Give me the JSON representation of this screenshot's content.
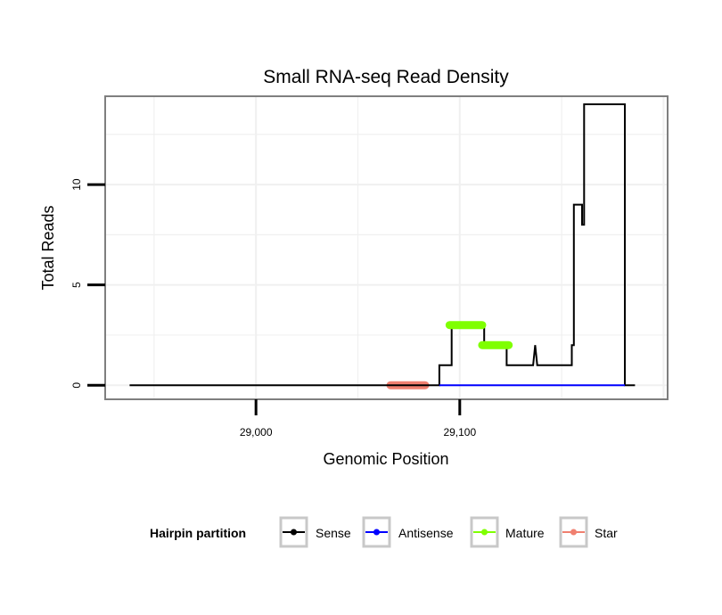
{
  "chart_data": {
    "type": "line",
    "title": "Small RNA-seq Read Density",
    "xlabel": "Genomic Position",
    "ylabel": "Total Reads",
    "xlim": [
      28926,
      29202
    ],
    "ylim": [
      -0.7,
      14.4
    ],
    "x_ticks": [
      29000,
      29100
    ],
    "x_tick_labels": [
      "29,000",
      "29,100"
    ],
    "y_ticks": [
      0,
      5,
      10
    ],
    "y_tick_labels": [
      "0",
      "5",
      "10"
    ],
    "grid": true,
    "legend": {
      "title": "Hairpin partition",
      "position": "bottom",
      "entries": [
        "Sense",
        "Antisense",
        "Mature",
        "Star"
      ]
    },
    "series": [
      {
        "name": "Sense",
        "color": "#000000",
        "x": [
          28938,
          29090,
          29090,
          29093,
          29093,
          29096,
          29096,
          29112,
          29112,
          29113,
          29113,
          29123,
          29123,
          29136,
          29136,
          29137,
          29137,
          29138,
          29138,
          29155,
          29155,
          29156,
          29156,
          29160,
          29160,
          29161,
          29161,
          29162,
          29162,
          29181,
          29181,
          29186
        ],
        "y": [
          0,
          0,
          1,
          1,
          1,
          1,
          3,
          3,
          2,
          2,
          2,
          2,
          1,
          1,
          1,
          2,
          2,
          1,
          1,
          1,
          2,
          2,
          9,
          9,
          8,
          8,
          14,
          14,
          14,
          14,
          0,
          0
        ]
      },
      {
        "name": "Antisense",
        "color": "#0000ff",
        "x": [
          29090,
          29181
        ],
        "y": [
          0,
          0
        ]
      },
      {
        "name": "Mature",
        "color": "#7fff00",
        "segments": [
          {
            "x": [
              29095,
              29111
            ],
            "y": 3
          },
          {
            "x": [
              29111,
              29124
            ],
            "y": 2
          }
        ]
      },
      {
        "name": "Star",
        "color": "#f08070",
        "segments": [
          {
            "x": [
              29066,
              29083
            ],
            "y": 0
          }
        ]
      }
    ]
  }
}
